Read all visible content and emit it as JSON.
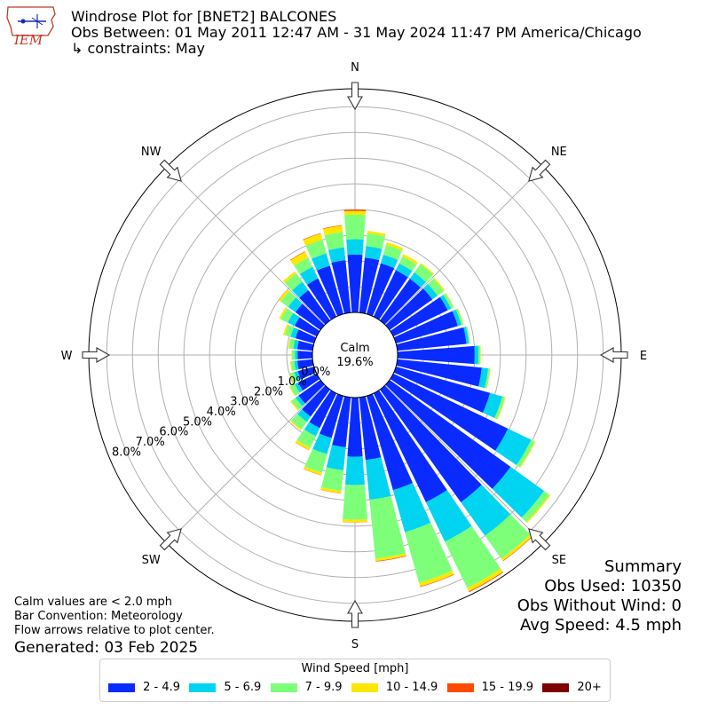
{
  "header": {
    "title_line1": "Windrose Plot for [BNET2] BALCONES",
    "title_line2": "Obs Between: 01 May 2011 12:47 AM - 31 May 2024 11:47 PM America/Chicago",
    "title_line3": "↳ constraints: May",
    "logo_text": "IEM"
  },
  "summary": {
    "heading": "Summary",
    "obs_used": "Obs Used: 10350",
    "obs_without_wind": "Obs Without Wind: 0",
    "avg_speed": "Avg Speed: 4.5 mph"
  },
  "notes": {
    "calm": "Calm values are < 2.0 mph",
    "bar_convention": "Bar Convention: Meteorology",
    "flow_arrows": "Flow arrows relative to plot center.",
    "generated": "Generated: 03 Feb 2025"
  },
  "legend": {
    "title": "Wind Speed [mph]",
    "items": [
      {
        "label": "2 - 4.9",
        "color": "#0a2bff"
      },
      {
        "label": "5 - 6.9",
        "color": "#00d4f0"
      },
      {
        "label": "7 - 9.9",
        "color": "#7dff7a"
      },
      {
        "label": "10 - 14.9",
        "color": "#ffe600"
      },
      {
        "label": "15 - 19.9",
        "color": "#ff4a00"
      },
      {
        "label": "20+",
        "color": "#7f0000"
      }
    ]
  },
  "chart_data": {
    "type": "windrose",
    "calm_label": "Calm",
    "calm_percent": "19.6%",
    "radial_ticks": [
      "0.0%",
      "1.0%",
      "2.0%",
      "3.0%",
      "4.0%",
      "5.0%",
      "6.0%",
      "7.0%",
      "8.0%"
    ],
    "radial_tick_values": [
      0,
      1,
      2,
      3,
      4,
      5,
      6,
      7,
      8
    ],
    "rmax": 8.7,
    "directions": [
      {
        "label": "N",
        "angle": 0
      },
      {
        "label": "NE",
        "angle": 45
      },
      {
        "label": "E",
        "angle": 90
      },
      {
        "label": "SE",
        "angle": 135
      },
      {
        "label": "S",
        "angle": 180
      },
      {
        "label": "SW",
        "angle": 225
      },
      {
        "label": "W",
        "angle": 270
      },
      {
        "label": "NW",
        "angle": 315
      }
    ],
    "bins": [
      "2 - 4.9",
      "5 - 6.9",
      "7 - 9.9",
      "10 - 14.9",
      "15 - 19.9",
      "20+"
    ],
    "sectors": [
      {
        "dir": 0,
        "values": [
          2.25,
          2.85,
          3.8,
          3.95,
          4.0,
          4.0
        ]
      },
      {
        "dir": 10,
        "values": [
          2.15,
          2.6,
          3.1,
          3.2,
          3.2,
          3.2
        ]
      },
      {
        "dir": 20,
        "values": [
          2.05,
          2.4,
          2.8,
          2.9,
          2.9,
          2.9
        ]
      },
      {
        "dir": 30,
        "values": [
          2.0,
          2.3,
          2.6,
          2.7,
          2.7,
          2.7
        ]
      },
      {
        "dir": 40,
        "values": [
          2.0,
          2.3,
          2.7,
          2.75,
          2.75,
          2.75
        ]
      },
      {
        "dir": 50,
        "values": [
          2.05,
          2.3,
          2.6,
          2.65,
          2.65,
          2.65
        ]
      },
      {
        "dir": 60,
        "values": [
          2.35,
          2.5,
          2.6,
          2.62,
          2.62,
          2.62
        ]
      },
      {
        "dir": 70,
        "values": [
          2.5,
          2.65,
          2.72,
          2.74,
          2.74,
          2.74
        ]
      },
      {
        "dir": 80,
        "values": [
          2.7,
          2.8,
          2.84,
          2.85,
          2.85,
          2.85
        ]
      },
      {
        "dir": 90,
        "values": [
          3.0,
          3.15,
          3.22,
          3.24,
          3.24,
          3.24
        ]
      },
      {
        "dir": 100,
        "values": [
          3.3,
          3.55,
          3.62,
          3.64,
          3.64,
          3.64
        ]
      },
      {
        "dir": 110,
        "values": [
          3.8,
          4.3,
          4.4,
          4.43,
          4.43,
          4.43
        ]
      },
      {
        "dir": 120,
        "values": [
          4.95,
          5.95,
          6.1,
          6.13,
          6.13,
          6.13
        ]
      },
      {
        "dir": 130,
        "values": [
          5.8,
          7.4,
          7.65,
          7.7,
          7.7,
          7.7
        ]
      },
      {
        "dir": 140,
        "values": [
          5.4,
          7.0,
          8.1,
          8.2,
          8.22,
          8.22
        ]
      },
      {
        "dir": 150,
        "values": [
          4.7,
          6.4,
          8.4,
          8.55,
          8.58,
          8.58
        ]
      },
      {
        "dir": 160,
        "values": [
          3.8,
          5.5,
          7.55,
          7.7,
          7.72,
          7.72
        ]
      },
      {
        "dir": 170,
        "values": [
          2.45,
          4.0,
          6.3,
          6.4,
          6.42,
          6.42
        ]
      },
      {
        "dir": 180,
        "values": [
          2.3,
          3.4,
          4.75,
          4.85,
          4.86,
          4.86
        ]
      },
      {
        "dir": 190,
        "values": [
          1.95,
          2.85,
          3.65,
          3.75,
          3.76,
          3.76
        ]
      },
      {
        "dir": 200,
        "values": [
          1.7,
          2.35,
          3.1,
          3.2,
          3.21,
          3.21
        ]
      },
      {
        "dir": 210,
        "values": [
          1.5,
          1.85,
          2.35,
          2.45,
          2.46,
          2.46
        ]
      },
      {
        "dir": 220,
        "values": [
          1.3,
          1.55,
          1.9,
          1.95,
          1.95,
          1.95
        ]
      },
      {
        "dir": 230,
        "values": [
          1.05,
          1.2,
          1.4,
          1.44,
          1.44,
          1.44
        ]
      },
      {
        "dir": 240,
        "values": [
          0.8,
          0.95,
          1.15,
          1.18,
          1.18,
          1.18
        ]
      },
      {
        "dir": 250,
        "values": [
          0.65,
          0.8,
          0.97,
          1.0,
          1.0,
          1.0
        ]
      },
      {
        "dir": 260,
        "values": [
          0.6,
          0.72,
          0.85,
          0.88,
          0.88,
          0.88
        ]
      },
      {
        "dir": 270,
        "values": [
          0.58,
          0.68,
          0.8,
          0.82,
          0.82,
          0.82
        ]
      },
      {
        "dir": 280,
        "values": [
          0.6,
          0.75,
          0.92,
          0.96,
          0.96,
          0.96
        ]
      },
      {
        "dir": 290,
        "values": [
          0.75,
          0.95,
          1.18,
          1.25,
          1.25,
          1.25
        ]
      },
      {
        "dir": 300,
        "values": [
          0.95,
          1.25,
          1.55,
          1.62,
          1.62,
          1.62
        ]
      },
      {
        "dir": 310,
        "values": [
          1.2,
          1.55,
          1.9,
          2.0,
          2.0,
          2.0
        ]
      },
      {
        "dir": 320,
        "values": [
          1.45,
          1.85,
          2.25,
          2.35,
          2.35,
          2.35
        ]
      },
      {
        "dir": 330,
        "values": [
          1.65,
          2.15,
          2.55,
          2.8,
          2.82,
          2.82
        ]
      },
      {
        "dir": 340,
        "values": [
          1.95,
          2.45,
          3.0,
          3.25,
          3.27,
          3.27
        ]
      },
      {
        "dir": 350,
        "values": [
          2.05,
          2.55,
          3.15,
          3.4,
          3.42,
          3.42
        ]
      }
    ]
  }
}
